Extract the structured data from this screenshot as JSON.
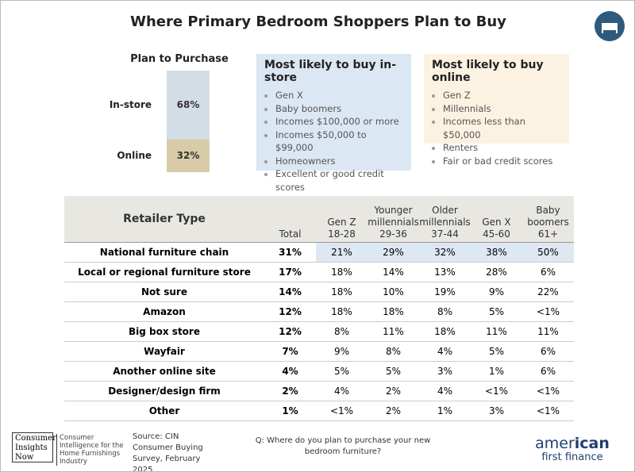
{
  "header": {
    "title": "Where Primary Bedroom Shoppers Plan to Buy"
  },
  "plan_to_purchase": {
    "title": "Plan to Purchase",
    "segments": [
      {
        "label": "In-store",
        "value": 68,
        "value_label": "68%",
        "color": "#d3dde6"
      },
      {
        "label": "Online",
        "value": 32,
        "value_label": "32%",
        "color": "#d8cca8"
      }
    ]
  },
  "instore_box": {
    "title": "Most likely to buy in-store",
    "items": [
      "Gen X",
      "Baby boomers",
      "Incomes $100,000 or more",
      "Incomes $50,000 to $99,000",
      "Homeowners",
      "Excellent or good credit scores"
    ]
  },
  "online_box": {
    "title": "Most likely to buy online",
    "items": [
      "Gen Z",
      "Millennials",
      "Incomes less than $50,000",
      "Renters",
      "Fair or bad credit scores"
    ]
  },
  "table": {
    "header": [
      [
        "Retailer Type"
      ],
      [
        "Total"
      ],
      [
        "Gen Z",
        "18-28"
      ],
      [
        "Younger",
        "millennials",
        "29-36"
      ],
      [
        "Older",
        "millennials",
        "37-44"
      ],
      [
        "Gen X",
        "45-60"
      ],
      [
        "Baby",
        "boomers",
        "61+"
      ]
    ],
    "rows": [
      [
        "National furniture chain",
        "31%",
        "21%",
        "29%",
        "32%",
        "38%",
        "50%"
      ],
      [
        "Local or regional furniture store",
        "17%",
        "18%",
        "14%",
        "13%",
        "28%",
        "6%"
      ],
      [
        "Not sure",
        "14%",
        "18%",
        "10%",
        "19%",
        "9%",
        "22%"
      ],
      [
        "Amazon",
        "12%",
        "18%",
        "18%",
        "8%",
        "5%",
        "<1%"
      ],
      [
        "Big box store",
        "12%",
        "8%",
        "11%",
        "18%",
        "11%",
        "11%"
      ],
      [
        "Wayfair",
        "7%",
        "9%",
        "8%",
        "4%",
        "5%",
        "6%"
      ],
      [
        "Another online site",
        "4%",
        "5%",
        "5%",
        "3%",
        "1%",
        "6%"
      ],
      [
        "Designer/design firm",
        "2%",
        "4%",
        "2%",
        "4%",
        "<1%",
        "<1%"
      ],
      [
        "Other",
        "1%",
        "<1%",
        "2%",
        "1%",
        "3%",
        "<1%"
      ]
    ]
  },
  "footer": {
    "logo_left": [
      "Consumer",
      "Insights",
      "Now"
    ],
    "logo_tagline": "Consumer Intelligence for the Home Furnishings Industry",
    "source": "Source: CIN Consumer Buying Survey, February 2025",
    "question": "Q: Where do you plan to purchase your new bedroom furniture?",
    "logo_right": {
      "part1": "amer",
      "part2": "ican",
      "line2": "first finance"
    }
  }
}
